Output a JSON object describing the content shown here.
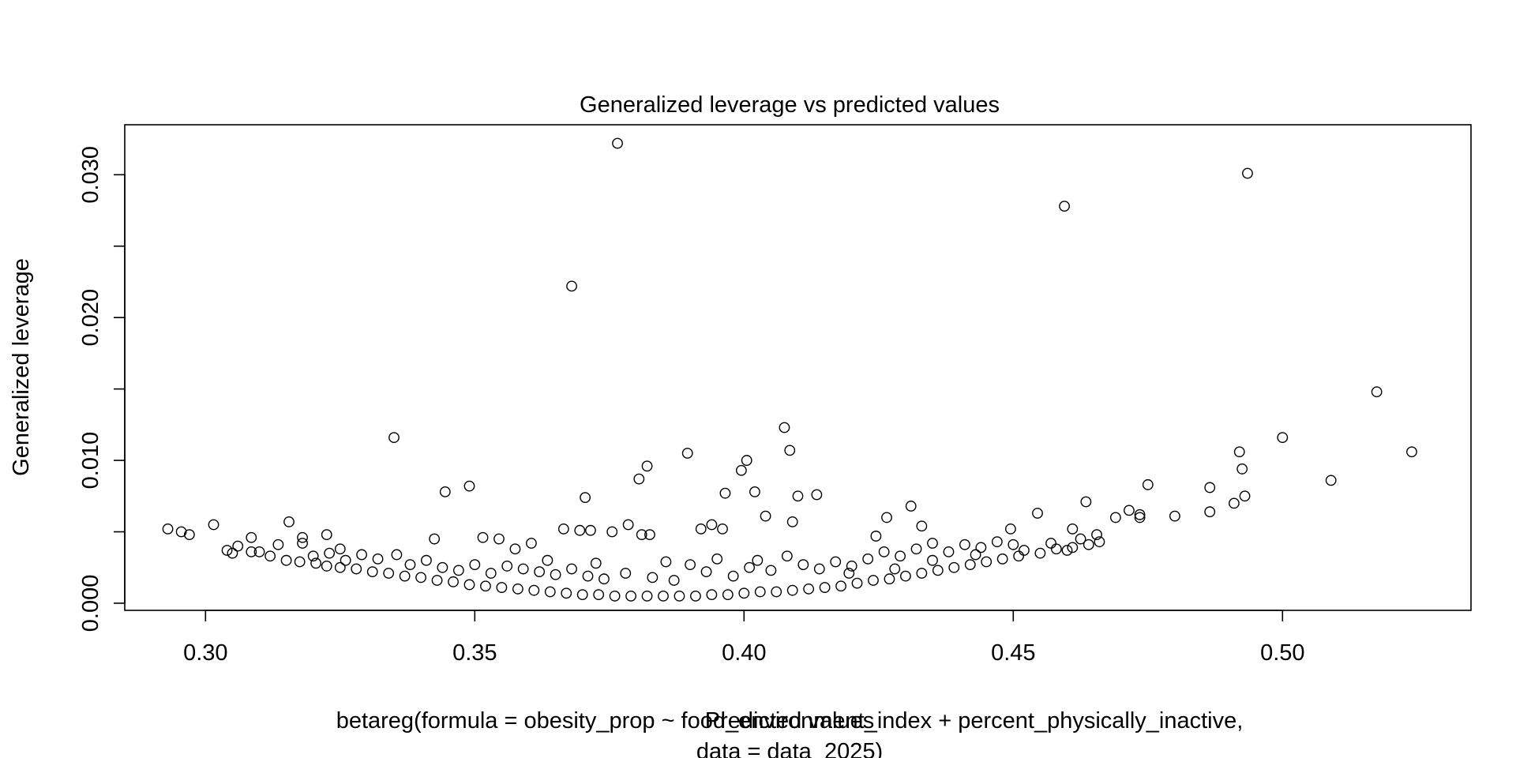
{
  "chart_data": {
    "type": "scatter",
    "title": "Generalized leverage vs predicted values",
    "xlabel": "Predicted values",
    "ylabel": "Generalized leverage",
    "subtitle_lines": [
      "betareg(formula = obesity_prop ~ food_environment_index + percent_physically_inactive,",
      "data = data_2025)"
    ],
    "xlim": [
      0.285,
      0.535
    ],
    "ylim": [
      -0.0005,
      0.0335
    ],
    "x_ticks": [
      0.3,
      0.35,
      0.4,
      0.45,
      0.5
    ],
    "x_tick_labels": [
      "0.30",
      "0.35",
      "0.40",
      "0.45",
      "0.50"
    ],
    "y_ticks": [
      0.0,
      0.005,
      0.01,
      0.015,
      0.02,
      0.025,
      0.03
    ],
    "y_tick_labels": [
      "0.000",
      "",
      "0.010",
      "",
      "0.020",
      "",
      "0.030"
    ],
    "grid": false,
    "legend": "none",
    "marker": "open-circle",
    "series": [
      {
        "points": [
          [
            0.3765,
            0.0322
          ],
          [
            0.4935,
            0.0301
          ],
          [
            0.4595,
            0.0278
          ],
          [
            0.368,
            0.0222
          ],
          [
            0.5175,
            0.0148
          ],
          [
            0.335,
            0.0116
          ],
          [
            0.4075,
            0.0123
          ],
          [
            0.5,
            0.0116
          ],
          [
            0.524,
            0.0106
          ],
          [
            0.3895,
            0.0105
          ],
          [
            0.4085,
            0.0107
          ],
          [
            0.492,
            0.0106
          ],
          [
            0.4005,
            0.01
          ],
          [
            0.382,
            0.0096
          ],
          [
            0.3995,
            0.0093
          ],
          [
            0.4925,
            0.0094
          ],
          [
            0.3805,
            0.0087
          ],
          [
            0.509,
            0.0086
          ],
          [
            0.475,
            0.0083
          ],
          [
            0.349,
            0.0082
          ],
          [
            0.4865,
            0.0081
          ],
          [
            0.3445,
            0.0078
          ],
          [
            0.402,
            0.0078
          ],
          [
            0.3965,
            0.0077
          ],
          [
            0.4135,
            0.0076
          ],
          [
            0.41,
            0.0075
          ],
          [
            0.3705,
            0.0074
          ],
          [
            0.493,
            0.0075
          ],
          [
            0.4635,
            0.0071
          ],
          [
            0.491,
            0.007
          ],
          [
            0.431,
            0.0068
          ],
          [
            0.4715,
            0.0065
          ],
          [
            0.4865,
            0.0064
          ],
          [
            0.4735,
            0.0062
          ],
          [
            0.4545,
            0.0063
          ],
          [
            0.4265,
            0.006
          ],
          [
            0.404,
            0.0061
          ],
          [
            0.48,
            0.0061
          ],
          [
            0.469,
            0.006
          ],
          [
            0.4735,
            0.006
          ],
          [
            0.3155,
            0.0057
          ],
          [
            0.409,
            0.0057
          ],
          [
            0.3785,
            0.0055
          ],
          [
            0.3015,
            0.0055
          ],
          [
            0.293,
            0.0052
          ],
          [
            0.2955,
            0.005
          ],
          [
            0.297,
            0.0048
          ],
          [
            0.3665,
            0.0052
          ],
          [
            0.3695,
            0.0051
          ],
          [
            0.3715,
            0.0051
          ],
          [
            0.3755,
            0.005
          ],
          [
            0.3825,
            0.0048
          ],
          [
            0.381,
            0.0048
          ],
          [
            0.392,
            0.0052
          ],
          [
            0.394,
            0.0055
          ],
          [
            0.396,
            0.0052
          ],
          [
            0.3225,
            0.0048
          ],
          [
            0.3085,
            0.0046
          ],
          [
            0.318,
            0.0046
          ],
          [
            0.3425,
            0.0045
          ],
          [
            0.3515,
            0.0046
          ],
          [
            0.3545,
            0.0045
          ],
          [
            0.4245,
            0.0047
          ],
          [
            0.433,
            0.0054
          ],
          [
            0.4495,
            0.0052
          ],
          [
            0.461,
            0.0052
          ],
          [
            0.4655,
            0.0048
          ],
          [
            0.4625,
            0.0045
          ],
          [
            0.3605,
            0.0042
          ],
          [
            0.318,
            0.0042
          ],
          [
            0.3135,
            0.0041
          ],
          [
            0.325,
            0.0038
          ],
          [
            0.306,
            0.004
          ],
          [
            0.3085,
            0.0036
          ],
          [
            0.304,
            0.0037
          ],
          [
            0.305,
            0.0035
          ],
          [
            0.31,
            0.0036
          ],
          [
            0.312,
            0.0033
          ],
          [
            0.315,
            0.003
          ],
          [
            0.3175,
            0.0029
          ],
          [
            0.3205,
            0.0028
          ],
          [
            0.3225,
            0.0026
          ],
          [
            0.325,
            0.0025
          ],
          [
            0.328,
            0.0024
          ],
          [
            0.331,
            0.0022
          ],
          [
            0.334,
            0.0021
          ],
          [
            0.337,
            0.0019
          ],
          [
            0.34,
            0.0018
          ],
          [
            0.343,
            0.0016
          ],
          [
            0.346,
            0.0015
          ],
          [
            0.349,
            0.0013
          ],
          [
            0.352,
            0.0012
          ],
          [
            0.355,
            0.0011
          ],
          [
            0.358,
            0.001
          ],
          [
            0.361,
            0.0009
          ],
          [
            0.364,
            0.0008
          ],
          [
            0.367,
            0.0007
          ],
          [
            0.37,
            0.0006
          ],
          [
            0.373,
            0.0006
          ],
          [
            0.376,
            0.0005
          ],
          [
            0.379,
            0.0005
          ],
          [
            0.382,
            0.0005
          ],
          [
            0.385,
            0.0005
          ],
          [
            0.388,
            0.0005
          ],
          [
            0.391,
            0.0005
          ],
          [
            0.394,
            0.0006
          ],
          [
            0.397,
            0.0006
          ],
          [
            0.4,
            0.0007
          ],
          [
            0.403,
            0.0008
          ],
          [
            0.406,
            0.0008
          ],
          [
            0.409,
            0.0009
          ],
          [
            0.412,
            0.001
          ],
          [
            0.415,
            0.0011
          ],
          [
            0.418,
            0.0012
          ],
          [
            0.421,
            0.0014
          ],
          [
            0.424,
            0.0016
          ],
          [
            0.427,
            0.0017
          ],
          [
            0.43,
            0.0019
          ],
          [
            0.433,
            0.0021
          ],
          [
            0.436,
            0.0023
          ],
          [
            0.439,
            0.0025
          ],
          [
            0.442,
            0.0027
          ],
          [
            0.445,
            0.0029
          ],
          [
            0.448,
            0.0031
          ],
          [
            0.451,
            0.0033
          ],
          [
            0.455,
            0.0035
          ],
          [
            0.458,
            0.0038
          ],
          [
            0.461,
            0.0039
          ],
          [
            0.464,
            0.0041
          ],
          [
            0.466,
            0.0043
          ],
          [
            0.356,
            0.0026
          ],
          [
            0.359,
            0.0024
          ],
          [
            0.362,
            0.0022
          ],
          [
            0.365,
            0.002
          ],
          [
            0.368,
            0.0024
          ],
          [
            0.371,
            0.0019
          ],
          [
            0.374,
            0.0017
          ],
          [
            0.378,
            0.0021
          ],
          [
            0.383,
            0.0018
          ],
          [
            0.387,
            0.0016
          ],
          [
            0.39,
            0.0027
          ],
          [
            0.393,
            0.0022
          ],
          [
            0.398,
            0.0019
          ],
          [
            0.401,
            0.0025
          ],
          [
            0.405,
            0.0023
          ],
          [
            0.408,
            0.0033
          ],
          [
            0.411,
            0.0027
          ],
          [
            0.414,
            0.0024
          ],
          [
            0.417,
            0.0029
          ],
          [
            0.42,
            0.0026
          ],
          [
            0.423,
            0.0031
          ],
          [
            0.426,
            0.0036
          ],
          [
            0.429,
            0.0033
          ],
          [
            0.432,
            0.0038
          ],
          [
            0.435,
            0.0042
          ],
          [
            0.438,
            0.0036
          ],
          [
            0.441,
            0.0041
          ],
          [
            0.444,
            0.0039
          ],
          [
            0.447,
            0.0043
          ],
          [
            0.45,
            0.0041
          ],
          [
            0.329,
            0.0034
          ],
          [
            0.332,
            0.0031
          ],
          [
            0.3355,
            0.0034
          ],
          [
            0.338,
            0.0027
          ],
          [
            0.341,
            0.003
          ],
          [
            0.344,
            0.0025
          ],
          [
            0.347,
            0.0023
          ],
          [
            0.35,
            0.0027
          ],
          [
            0.353,
            0.0021
          ],
          [
            0.326,
            0.003
          ],
          [
            0.32,
            0.0033
          ],
          [
            0.323,
            0.0035
          ],
          [
            0.3575,
            0.0038
          ],
          [
            0.3635,
            0.003
          ],
          [
            0.3725,
            0.0028
          ],
          [
            0.3855,
            0.0029
          ],
          [
            0.395,
            0.0031
          ],
          [
            0.4025,
            0.003
          ],
          [
            0.4195,
            0.0021
          ],
          [
            0.428,
            0.0024
          ],
          [
            0.435,
            0.003
          ],
          [
            0.443,
            0.0034
          ],
          [
            0.452,
            0.0037
          ],
          [
            0.457,
            0.0042
          ],
          [
            0.46,
            0.0037
          ]
        ]
      }
    ]
  }
}
